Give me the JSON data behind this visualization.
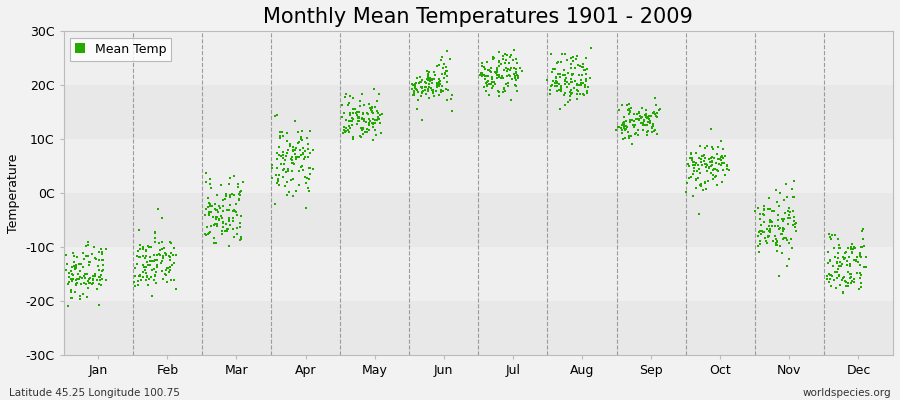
{
  "title": "Monthly Mean Temperatures 1901 - 2009",
  "ylabel": "Temperature",
  "xlabel_bottom_left": "Latitude 45.25 Longitude 100.75",
  "xlabel_bottom_right": "worldspecies.org",
  "legend_label": "Mean Temp",
  "dot_color": "#22aa00",
  "background_color": "#f2f2f2",
  "plot_bg_color": "#f2f2f2",
  "ylim": [
    -30,
    30
  ],
  "yticks": [
    -30,
    -20,
    -10,
    0,
    10,
    20,
    30
  ],
  "ytick_labels": [
    "-30C",
    "-20C",
    "-10C",
    "0C",
    "10C",
    "20C",
    "30C"
  ],
  "months": [
    "Jan",
    "Feb",
    "Mar",
    "Apr",
    "May",
    "Jun",
    "Jul",
    "Aug",
    "Sep",
    "Oct",
    "Nov",
    "Dec"
  ],
  "mean_temps": [
    -15.5,
    -13.5,
    -4.5,
    5.0,
    13.5,
    19.5,
    21.5,
    20.5,
    12.5,
    4.5,
    -6.5,
    -13.5
  ],
  "spread": [
    2.5,
    2.5,
    3.5,
    3.5,
    2.0,
    1.8,
    2.0,
    2.2,
    1.8,
    2.5,
    3.0,
    2.8
  ],
  "trend": [
    0.015,
    0.012,
    0.015,
    0.015,
    0.01,
    0.01,
    0.01,
    0.01,
    0.01,
    0.012,
    0.012,
    0.012
  ],
  "n_years": 109,
  "dot_size": 3,
  "title_fontsize": 15,
  "label_fontsize": 9,
  "tick_fontsize": 9,
  "legend_fontsize": 9
}
